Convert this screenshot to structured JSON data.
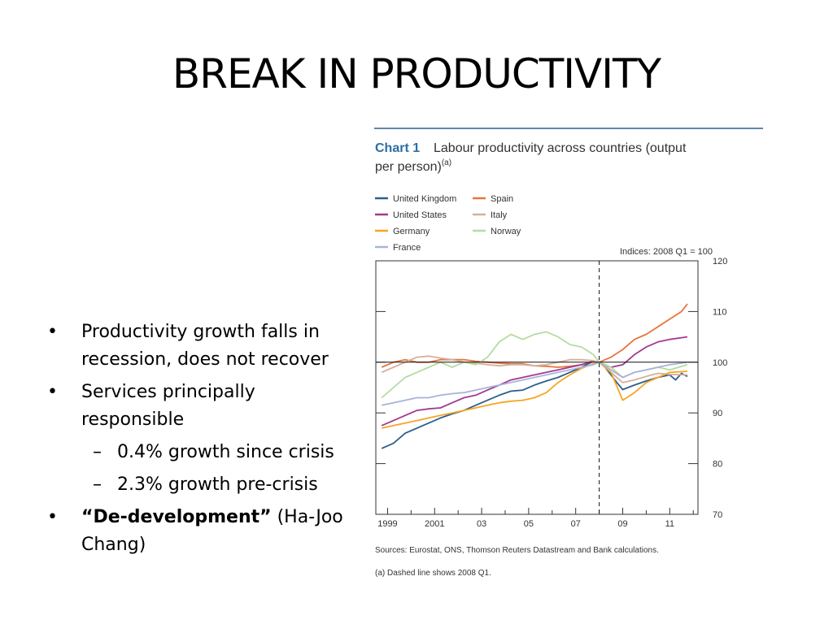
{
  "slide": {
    "title": "BREAK IN PRODUCTIVITY",
    "bullets": [
      {
        "line1": "Productivity growth falls in",
        "line2": "recession, does not recover"
      },
      {
        "line1": "Services principally",
        "line2": "responsible"
      },
      {
        "text": "0.4% growth since crisis"
      },
      {
        "text": "2.3% growth pre-crisis"
      },
      {
        "bold": "“De-development”",
        "rest": " (Ha-Joon",
        "line2": "Chang)"
      }
    ]
  },
  "chart_data": {
    "type": "line",
    "chart_label": "Chart 1",
    "title_line1": "Labour productivity across countries (output",
    "title_line2": "per person)",
    "title_superscript": "(a)",
    "units_note": "Indices:  2008 Q1 = 100",
    "x_tick_labels": [
      "1999",
      "2001",
      "03",
      "05",
      "07",
      "09",
      "11"
    ],
    "x_tick_values": [
      1999,
      2001,
      2003,
      2005,
      2007,
      2009,
      2011
    ],
    "xlim": [
      1998.5,
      2012.2
    ],
    "ylim": [
      70,
      120
    ],
    "y_ticks": [
      70,
      80,
      90,
      100,
      110,
      120
    ],
    "reference_x": 2008.0,
    "reference_y": 100,
    "legend_placement": "top-left, two columns",
    "grid": false,
    "sources": "Sources:  Eurostat, ONS, Thomson Reuters Datastream and Bank calculations.",
    "footnote": "(a)  Dashed line shows 2008 Q1.",
    "series": [
      {
        "name": "United Kingdom",
        "color": "#2c5f8d",
        "points": [
          [
            1998.75,
            83
          ],
          [
            1999.25,
            84
          ],
          [
            1999.75,
            86
          ],
          [
            2000.25,
            87
          ],
          [
            2000.75,
            88
          ],
          [
            2001.25,
            89
          ],
          [
            2001.75,
            89.8
          ],
          [
            2002.25,
            90.5
          ],
          [
            2002.75,
            91.5
          ],
          [
            2003.25,
            92.5
          ],
          [
            2003.75,
            93.5
          ],
          [
            2004.25,
            94.3
          ],
          [
            2004.75,
            94.5
          ],
          [
            2005.25,
            95.5
          ],
          [
            2005.75,
            96.3
          ],
          [
            2006.25,
            97
          ],
          [
            2006.75,
            98
          ],
          [
            2007.25,
            99
          ],
          [
            2007.75,
            100.2
          ],
          [
            2008.0,
            100
          ],
          [
            2008.25,
            99
          ],
          [
            2008.75,
            96
          ],
          [
            2009.0,
            94.6
          ],
          [
            2009.5,
            95.5
          ],
          [
            2010.0,
            96.3
          ],
          [
            2010.5,
            97
          ],
          [
            2011.0,
            97.5
          ],
          [
            2011.25,
            96.5
          ],
          [
            2011.5,
            97.8
          ],
          [
            2011.75,
            97.2
          ]
        ]
      },
      {
        "name": "Spain",
        "color": "#e8743b",
        "points": [
          [
            1998.75,
            99
          ],
          [
            1999.25,
            100
          ],
          [
            1999.75,
            100.5
          ],
          [
            2000.25,
            100
          ],
          [
            2000.75,
            100
          ],
          [
            2001.25,
            100.5
          ],
          [
            2001.75,
            100.5
          ],
          [
            2002.25,
            100.5
          ],
          [
            2002.75,
            100.2
          ],
          [
            2003.25,
            100
          ],
          [
            2003.75,
            99.8
          ],
          [
            2004.25,
            99.7
          ],
          [
            2004.75,
            99.7
          ],
          [
            2005.25,
            99.3
          ],
          [
            2005.75,
            99.2
          ],
          [
            2006.25,
            99
          ],
          [
            2006.75,
            99.2
          ],
          [
            2007.25,
            99.5
          ],
          [
            2007.75,
            100.2
          ],
          [
            2008.0,
            100
          ],
          [
            2008.5,
            101
          ],
          [
            2009.0,
            102.5
          ],
          [
            2009.5,
            104.5
          ],
          [
            2010.0,
            105.5
          ],
          [
            2010.5,
            107
          ],
          [
            2011.0,
            108.5
          ],
          [
            2011.5,
            110
          ],
          [
            2011.75,
            111.5
          ]
        ]
      },
      {
        "name": "United States",
        "color": "#a23a8f",
        "points": [
          [
            1998.75,
            87.5
          ],
          [
            1999.25,
            88.5
          ],
          [
            1999.75,
            89.5
          ],
          [
            2000.25,
            90.5
          ],
          [
            2000.75,
            90.8
          ],
          [
            2001.25,
            91
          ],
          [
            2001.75,
            92
          ],
          [
            2002.25,
            93
          ],
          [
            2002.75,
            93.5
          ],
          [
            2003.25,
            94.5
          ],
          [
            2003.75,
            95.5
          ],
          [
            2004.25,
            96.5
          ],
          [
            2004.75,
            97
          ],
          [
            2005.25,
            97.5
          ],
          [
            2005.75,
            98
          ],
          [
            2006.25,
            98.5
          ],
          [
            2006.75,
            99
          ],
          [
            2007.25,
            99.5
          ],
          [
            2007.75,
            100.2
          ],
          [
            2008.0,
            100
          ],
          [
            2008.5,
            99
          ],
          [
            2009.0,
            99.5
          ],
          [
            2009.5,
            101.5
          ],
          [
            2010.0,
            103
          ],
          [
            2010.5,
            104
          ],
          [
            2011.0,
            104.5
          ],
          [
            2011.75,
            105
          ]
        ]
      },
      {
        "name": "Italy",
        "color": "#d4b09c",
        "points": [
          [
            1998.75,
            98
          ],
          [
            1999.25,
            99
          ],
          [
            1999.75,
            100
          ],
          [
            2000.25,
            101
          ],
          [
            2000.75,
            101.2
          ],
          [
            2001.25,
            100.8
          ],
          [
            2001.75,
            100.5
          ],
          [
            2002.25,
            100
          ],
          [
            2002.75,
            99.8
          ],
          [
            2003.25,
            99.5
          ],
          [
            2003.75,
            99.3
          ],
          [
            2004.25,
            99.5
          ],
          [
            2004.75,
            99.5
          ],
          [
            2005.25,
            99.3
          ],
          [
            2005.75,
            99.5
          ],
          [
            2006.25,
            100
          ],
          [
            2006.75,
            100.5
          ],
          [
            2007.25,
            100.5
          ],
          [
            2007.75,
            100.3
          ],
          [
            2008.0,
            100
          ],
          [
            2008.5,
            98
          ],
          [
            2009.0,
            96
          ],
          [
            2009.5,
            96.5
          ],
          [
            2010.0,
            97.2
          ],
          [
            2010.5,
            97.8
          ],
          [
            2011.0,
            97.6
          ],
          [
            2011.75,
            97.5
          ]
        ]
      },
      {
        "name": "Germany",
        "color": "#f5a623",
        "points": [
          [
            1998.75,
            87
          ],
          [
            1999.25,
            87.5
          ],
          [
            1999.75,
            88
          ],
          [
            2000.25,
            88.5
          ],
          [
            2000.75,
            89
          ],
          [
            2001.25,
            89.5
          ],
          [
            2001.75,
            90
          ],
          [
            2002.25,
            90.5
          ],
          [
            2002.75,
            91
          ],
          [
            2003.25,
            91.5
          ],
          [
            2003.75,
            92
          ],
          [
            2004.25,
            92.3
          ],
          [
            2004.75,
            92.5
          ],
          [
            2005.25,
            93
          ],
          [
            2005.75,
            94
          ],
          [
            2006.25,
            96
          ],
          [
            2006.75,
            97.5
          ],
          [
            2007.25,
            98.8
          ],
          [
            2007.75,
            99.7
          ],
          [
            2008.0,
            100
          ],
          [
            2008.5,
            98
          ],
          [
            2009.0,
            92.5
          ],
          [
            2009.5,
            94
          ],
          [
            2010.0,
            96
          ],
          [
            2010.5,
            97
          ],
          [
            2011.0,
            98
          ],
          [
            2011.75,
            98.2
          ]
        ]
      },
      {
        "name": "Norway",
        "color": "#b5dca0",
        "points": [
          [
            1998.75,
            93
          ],
          [
            1999.25,
            95
          ],
          [
            1999.75,
            97
          ],
          [
            2000.25,
            98
          ],
          [
            2000.75,
            99
          ],
          [
            2001.25,
            100
          ],
          [
            2001.75,
            99
          ],
          [
            2002.25,
            100
          ],
          [
            2002.75,
            99.5
          ],
          [
            2003.25,
            101
          ],
          [
            2003.75,
            104
          ],
          [
            2004.25,
            105.5
          ],
          [
            2004.75,
            104.5
          ],
          [
            2005.25,
            105.5
          ],
          [
            2005.75,
            106
          ],
          [
            2006.25,
            105
          ],
          [
            2006.75,
            103.5
          ],
          [
            2007.25,
            103
          ],
          [
            2007.75,
            101.5
          ],
          [
            2008.0,
            100
          ],
          [
            2008.5,
            99
          ],
          [
            2009.0,
            97
          ],
          [
            2009.5,
            98
          ],
          [
            2010.0,
            98.5
          ],
          [
            2010.5,
            99
          ],
          [
            2011.0,
            98.5
          ],
          [
            2011.75,
            99.5
          ]
        ]
      },
      {
        "name": "France",
        "color": "#a9b2dc",
        "points": [
          [
            1998.75,
            91.5
          ],
          [
            1999.25,
            92
          ],
          [
            1999.75,
            92.5
          ],
          [
            2000.25,
            93
          ],
          [
            2000.75,
            93
          ],
          [
            2001.25,
            93.5
          ],
          [
            2001.75,
            93.8
          ],
          [
            2002.25,
            94
          ],
          [
            2002.75,
            94.5
          ],
          [
            2003.25,
            95
          ],
          [
            2003.75,
            95.5
          ],
          [
            2004.25,
            96
          ],
          [
            2004.75,
            96.5
          ],
          [
            2005.25,
            97
          ],
          [
            2005.75,
            97.5
          ],
          [
            2006.25,
            98
          ],
          [
            2006.75,
            98.5
          ],
          [
            2007.25,
            99
          ],
          [
            2007.75,
            99.5
          ],
          [
            2008.0,
            100
          ],
          [
            2008.5,
            98.5
          ],
          [
            2009.0,
            97
          ],
          [
            2009.5,
            98
          ],
          [
            2010.0,
            98.5
          ],
          [
            2010.5,
            99
          ],
          [
            2011.0,
            99.5
          ],
          [
            2011.75,
            100
          ]
        ]
      }
    ]
  }
}
